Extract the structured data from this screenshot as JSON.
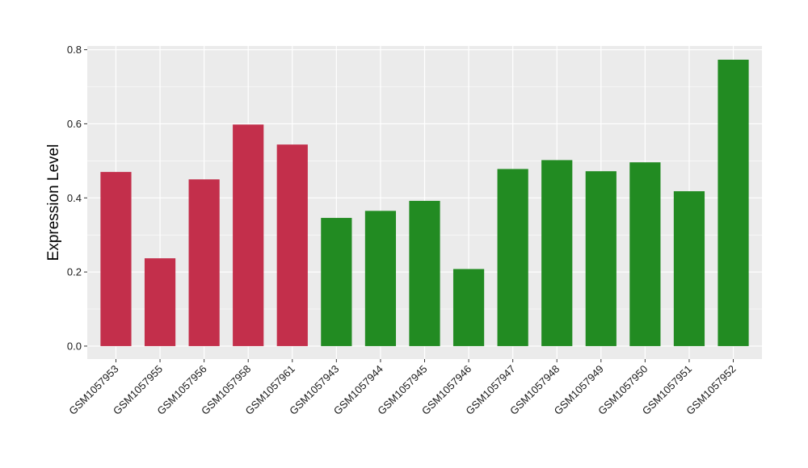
{
  "chart_data": {
    "type": "bar",
    "title": "",
    "xlabel": "",
    "ylabel": "Expression Level",
    "ylim": [
      -0.035,
      0.81
    ],
    "yticks": [
      0.0,
      0.2,
      0.4,
      0.6,
      0.8
    ],
    "ytick_labels": [
      "0.0",
      "0.2",
      "0.4",
      "0.6",
      "0.8"
    ],
    "grid": true,
    "legend": "none",
    "background_color": "#ebebeb",
    "grid_color": "#ffffff",
    "categories": [
      "GSM1057953",
      "GSM1057955",
      "GSM1057956",
      "GSM1057958",
      "GSM1057961",
      "GSM1057943",
      "GSM1057944",
      "GSM1057945",
      "GSM1057946",
      "GSM1057947",
      "GSM1057948",
      "GSM1057949",
      "GSM1057950",
      "GSM1057951",
      "GSM1057952"
    ],
    "values": [
      0.47,
      0.237,
      0.45,
      0.598,
      0.544,
      0.346,
      0.365,
      0.392,
      0.208,
      0.478,
      0.502,
      0.472,
      0.496,
      0.418,
      0.773
    ],
    "colors": [
      "#c32f4b",
      "#c32f4b",
      "#c32f4b",
      "#c32f4b",
      "#c32f4b",
      "#228b22",
      "#228b22",
      "#228b22",
      "#228b22",
      "#228b22",
      "#228b22",
      "#228b22",
      "#228b22",
      "#228b22",
      "#228b22"
    ]
  }
}
